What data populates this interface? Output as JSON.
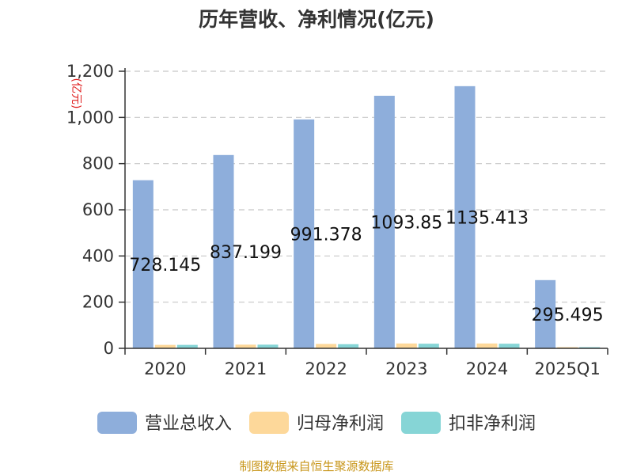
{
  "chart_data": {
    "type": "bar",
    "title": "历年营收、净利情况(亿元)",
    "y_unit": "(亿元)",
    "categories": [
      "2020",
      "2021",
      "2022",
      "2023",
      "2024",
      "2025Q1"
    ],
    "series": [
      {
        "name": "营业总收入",
        "color": "#8eaedb",
        "values": [
          728.145,
          837.199,
          991.378,
          1093.85,
          1135.413,
          295.495
        ],
        "labels": [
          "728.145",
          "837.199",
          "991.378",
          "1093.85",
          "1135.413",
          "295.495"
        ]
      },
      {
        "name": "归母净利润",
        "color": "#fdd89a",
        "values": [
          15,
          16,
          19,
          21,
          21,
          5
        ]
      },
      {
        "name": "扣非净利润",
        "color": "#86d5d6",
        "values": [
          15,
          16,
          18,
          20,
          20,
          5
        ]
      }
    ],
    "ylim": [
      0,
      1200
    ],
    "yticks": [
      0,
      200,
      400,
      600,
      800,
      1000,
      1200
    ],
    "ytick_labels": [
      "0",
      "200",
      "400",
      "600",
      "800",
      "1,000",
      "1,200"
    ],
    "grid": true,
    "legend_position": "bottom"
  },
  "source": "制图数据来自恒生聚源数据库"
}
